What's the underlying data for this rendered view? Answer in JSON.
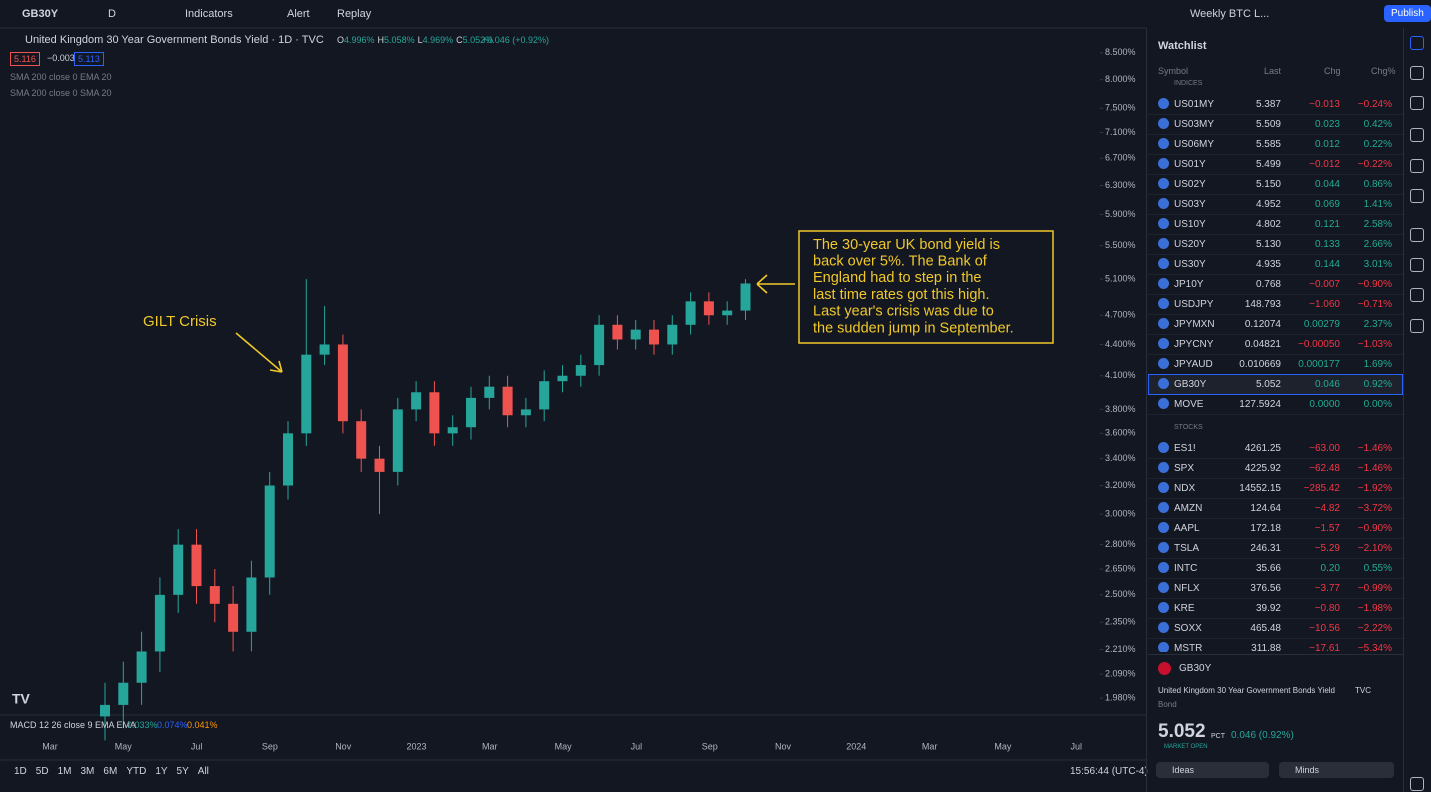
{
  "toolbar": {
    "symbol": "GB30Y",
    "interval": "D",
    "indicators": "Indicators",
    "alert": "Alert",
    "replay": "Replay",
    "layout": "Weekly BTC L...",
    "publish": "Publish"
  },
  "legend": {
    "title": "United Kingdom 30 Year Government Bonds Yield · 1D · TVC",
    "ohlc": [
      [
        "O",
        "4.996%"
      ],
      [
        "H",
        "5.058%"
      ],
      [
        "L",
        "4.969%"
      ],
      [
        "C",
        "5.052%"
      ]
    ],
    "change": "+0.046 (+0.92%)",
    "badges": [
      "5.116",
      "−0.003",
      "5.113"
    ],
    "indicators": [
      "SMA 200 close 0 EMA 20",
      "SMA 200 close 0 SMA 20"
    ]
  },
  "chart_data": {
    "type": "candlestick",
    "log_scale": true,
    "up_color": "#26a69a",
    "down_color": "#ef5350",
    "categories": [
      "Mar",
      "May",
      "Jul",
      "Sep",
      "Nov",
      "2023",
      "Mar",
      "May",
      "Jul",
      "Sep",
      "Nov",
      "2024",
      "Mar",
      "May",
      "Jul"
    ],
    "open": [
      1.9,
      1.95,
      2.05,
      2.2,
      2.5,
      2.8,
      2.55,
      2.45,
      2.3,
      2.6,
      3.2,
      3.6,
      4.3,
      4.4,
      3.7,
      3.4,
      3.3,
      3.8,
      3.95,
      3.6,
      3.65,
      3.9,
      4.0,
      3.75,
      3.8,
      4.05,
      4.1,
      4.2,
      4.6,
      4.45,
      4.55,
      4.4,
      4.6,
      4.85,
      4.7,
      4.75
    ],
    "high": [
      2.05,
      2.15,
      2.3,
      2.6,
      2.9,
      2.9,
      2.65,
      2.55,
      2.7,
      3.3,
      3.7,
      5.1,
      4.8,
      4.5,
      3.8,
      3.5,
      3.9,
      4.05,
      4.05,
      3.75,
      4.0,
      4.1,
      4.1,
      3.9,
      4.15,
      4.2,
      4.3,
      4.7,
      4.7,
      4.65,
      4.65,
      4.7,
      4.95,
      4.95,
      4.85,
      5.1
    ],
    "low": [
      1.8,
      1.85,
      1.95,
      2.1,
      2.4,
      2.45,
      2.35,
      2.2,
      2.2,
      2.5,
      3.1,
      3.5,
      4.2,
      3.6,
      3.3,
      3.0,
      3.2,
      3.7,
      3.5,
      3.5,
      3.55,
      3.8,
      3.65,
      3.65,
      3.7,
      3.95,
      4.0,
      4.1,
      4.35,
      4.35,
      4.3,
      4.3,
      4.5,
      4.6,
      4.6,
      4.65
    ],
    "close": [
      1.95,
      2.05,
      2.2,
      2.5,
      2.8,
      2.55,
      2.45,
      2.3,
      2.6,
      3.2,
      3.6,
      4.3,
      4.4,
      3.7,
      3.4,
      3.3,
      3.8,
      3.95,
      3.6,
      3.65,
      3.9,
      4.0,
      3.75,
      3.8,
      4.05,
      4.1,
      4.2,
      4.6,
      4.45,
      4.55,
      4.4,
      4.6,
      4.85,
      4.7,
      4.75,
      5.05
    ],
    "ylim": [
      1.906,
      8.95
    ],
    "yticks": [
      {
        "value": 8.5,
        "label": "8.500%"
      },
      {
        "value": 8,
        "label": "8.000%"
      },
      {
        "value": 7.5,
        "label": "7.500%"
      },
      {
        "value": 7.1,
        "label": "7.100%"
      },
      {
        "value": 6.7,
        "label": "6.700%"
      },
      {
        "value": 6.3,
        "label": "6.300%"
      },
      {
        "value": 5.9,
        "label": "5.900%"
      },
      {
        "value": 5.5,
        "label": "5.500%"
      },
      {
        "value": 5.1,
        "label": "5.100%"
      },
      {
        "value": 4.7,
        "label": "4.700%"
      },
      {
        "value": 4.4,
        "label": "4.400%"
      },
      {
        "value": 4.1,
        "label": "4.100%"
      },
      {
        "value": 3.8,
        "label": "3.800%"
      },
      {
        "value": 3.6,
        "label": "3.600%"
      },
      {
        "value": 3.4,
        "label": "3.400%"
      },
      {
        "value": 3.2,
        "label": "3.200%"
      },
      {
        "value": 3,
        "label": "3.000%"
      },
      {
        "value": 2.8,
        "label": "2.800%"
      },
      {
        "value": 2.65,
        "label": "2.650%"
      },
      {
        "value": 2.5,
        "label": "2.500%"
      },
      {
        "value": 2.35,
        "label": "2.350%"
      },
      {
        "value": 2.21,
        "label": "2.210%"
      },
      {
        "value": 2.09,
        "label": "2.090%"
      },
      {
        "value": 1.98,
        "label": "1.980%"
      }
    ],
    "annotations": {
      "crisis": "GILT Crisis",
      "note": [
        "The 30-year UK bond yield is",
        "back over 5%. The Bank of",
        "England had to step in the",
        "last time rates got this high.",
        "Last year's crisis was due to",
        "the sudden jump in September."
      ]
    }
  },
  "macd": {
    "label": "MACD 12 26 close 9 EMA EMA",
    "values": [
      "0.033%",
      "0.074%",
      "0.041%"
    ]
  },
  "bottom_bar": {
    "ranges": [
      "1D",
      "5D",
      "1M",
      "3M",
      "6M",
      "YTD",
      "1Y",
      "5Y",
      "All"
    ],
    "time": "15:56:44 (UTC-4)"
  },
  "watchlist": {
    "title": "Watchlist",
    "columns": [
      "Symbol",
      "Last",
      "Chg",
      "Chg%"
    ],
    "sections": [
      {
        "name": "INDICES",
        "rows": [
          [
            "US01MY",
            "5.387",
            "−0.013",
            "−0.24%"
          ],
          [
            "US03MY",
            "5.509",
            "0.023",
            "0.42%"
          ],
          [
            "US06MY",
            "5.585",
            "0.012",
            "0.22%"
          ],
          [
            "US01Y",
            "5.499",
            "−0.012",
            "−0.22%"
          ],
          [
            "US02Y",
            "5.150",
            "0.044",
            "0.86%"
          ],
          [
            "US03Y",
            "4.952",
            "0.069",
            "1.41%"
          ],
          [
            "US10Y",
            "4.802",
            "0.121",
            "2.58%"
          ],
          [
            "US20Y",
            "5.130",
            "0.133",
            "2.66%"
          ],
          [
            "US30Y",
            "4.935",
            "0.144",
            "3.01%"
          ],
          [
            "JP10Y",
            "0.768",
            "−0.007",
            "−0.90%"
          ],
          [
            "USDJPY",
            "148.793",
            "−1.060",
            "−0.71%"
          ],
          [
            "JPYMXN",
            "0.12074",
            "0.00279",
            "2.37%"
          ],
          [
            "JPYCNY",
            "0.04821",
            "−0.00050",
            "−1.03%"
          ],
          [
            "JPYAUD",
            "0.010669",
            "0.000177",
            "1.69%"
          ],
          [
            "GB30Y",
            "5.052",
            "0.046",
            "0.92%"
          ],
          [
            "MOVE",
            "127.5924",
            "0.0000",
            "0.00%"
          ]
        ]
      },
      {
        "name": "STOCKS",
        "rows": [
          [
            "ES1!",
            "4261.25",
            "−63.00",
            "−1.46%"
          ],
          [
            "SPX",
            "4225.92",
            "−62.48",
            "−1.46%"
          ],
          [
            "NDX",
            "14552.15",
            "−285.42",
            "−1.92%"
          ],
          [
            "AMZN",
            "124.64",
            "−4.82",
            "−3.72%"
          ],
          [
            "AAPL",
            "172.18",
            "−1.57",
            "−0.90%"
          ],
          [
            "TSLA",
            "246.31",
            "−5.29",
            "−2.10%"
          ],
          [
            "INTC",
            "35.66",
            "0.20",
            "0.55%"
          ],
          [
            "NFLX",
            "376.56",
            "−3.77",
            "−0.99%"
          ],
          [
            "KRE",
            "39.92",
            "−0.80",
            "−1.98%"
          ],
          [
            "SOXX",
            "465.48",
            "−10.56",
            "−2.22%"
          ],
          [
            "MSTR",
            "311.88",
            "−17.61",
            "−5.34%"
          ]
        ]
      }
    ]
  },
  "details": {
    "symbol": "GB30Y",
    "description": "United Kingdom 30 Year Government Bonds Yield",
    "exchange": "TVC",
    "kind": "Bond",
    "price": "5.052",
    "unit": "PCT",
    "change": "0.046 (0.92%)",
    "status": "MARKET OPEN",
    "buttons": [
      "Ideas",
      "Minds"
    ]
  }
}
